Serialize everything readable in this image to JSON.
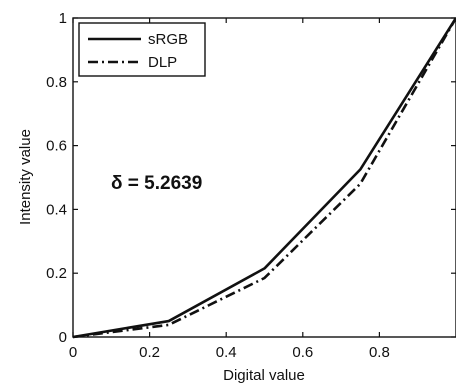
{
  "chart_data": {
    "type": "line",
    "xlabel": "Digital value",
    "ylabel": "Intensity value",
    "xlim": [
      0,
      1
    ],
    "ylim": [
      0,
      1
    ],
    "xticks": [
      "0",
      "0.2",
      "0.4",
      "0.6",
      "0.8"
    ],
    "yticks": [
      "0",
      "0.2",
      "0.4",
      "0.6",
      "0.8",
      "1"
    ],
    "grid": false,
    "legend_position": "top-left",
    "x": [
      0,
      0.25,
      0.5,
      0.75,
      1
    ],
    "series": [
      {
        "name": "sRGB",
        "values": [
          0,
          0.05,
          0.215,
          0.525,
          1
        ],
        "style": "solid",
        "color": "#111111"
      },
      {
        "name": "DLP",
        "values": [
          0,
          0.038,
          0.185,
          0.48,
          1
        ],
        "style": "dash-dot",
        "color": "#111111"
      }
    ],
    "annotation": "δ = 5.2639"
  }
}
